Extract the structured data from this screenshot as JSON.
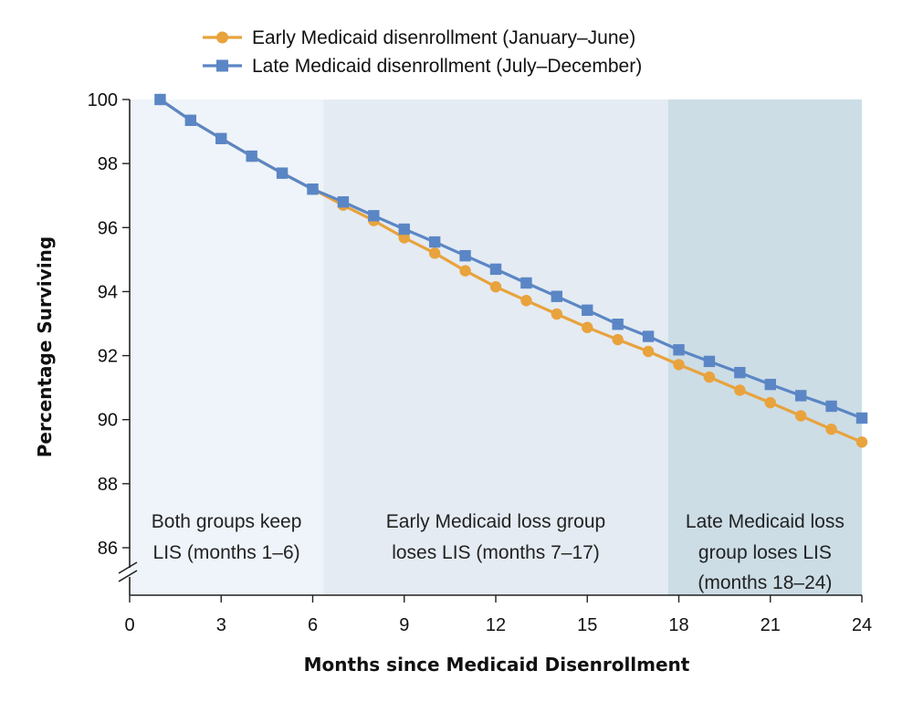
{
  "chart_data": {
    "type": "line",
    "title": "",
    "xlabel": "Months since Medicaid Disenrollment",
    "ylabel": "Percentage Surviving",
    "xlim": [
      0,
      24
    ],
    "ylim": [
      85,
      100
    ],
    "x_ticks": [
      0,
      3,
      6,
      9,
      12,
      15,
      18,
      21,
      24
    ],
    "y_ticks": [
      86,
      88,
      90,
      92,
      94,
      96,
      98,
      100
    ],
    "axis_break": true,
    "legend_position": "top-center",
    "x": [
      1,
      2,
      3,
      4,
      5,
      6,
      7,
      8,
      9,
      10,
      11,
      12,
      13,
      14,
      15,
      16,
      17,
      18,
      19,
      20,
      21,
      22,
      23,
      24
    ],
    "series": [
      {
        "name": "Early Medicaid disenrollment (January–June)",
        "color": "#e8a33d",
        "marker": "circle",
        "values": [
          100.0,
          99.35,
          98.78,
          98.23,
          97.7,
          97.2,
          96.7,
          96.22,
          95.68,
          95.2,
          94.65,
          94.15,
          93.72,
          93.3,
          92.88,
          92.5,
          92.13,
          91.72,
          91.33,
          90.92,
          90.53,
          90.12,
          89.7,
          89.3
        ]
      },
      {
        "name": "Late Medicaid disenrollment (July–December)",
        "color": "#5b86c5",
        "marker": "square",
        "values": [
          100.0,
          99.35,
          98.78,
          98.23,
          97.7,
          97.2,
          96.8,
          96.37,
          95.95,
          95.55,
          95.12,
          94.7,
          94.27,
          93.85,
          93.42,
          92.98,
          92.6,
          92.18,
          91.82,
          91.47,
          91.1,
          90.75,
          90.42,
          90.05
        ]
      }
    ],
    "regions": [
      {
        "x_range": [
          0,
          6.35
        ],
        "color": "#eef4fa",
        "lines": [
          "Both groups keep",
          "LIS (months 1–6)"
        ]
      },
      {
        "x_range": [
          6.35,
          17.65
        ],
        "color": "#e4ebf2",
        "lines": [
          "Early Medicaid loss group",
          "loses LIS (months 7–17)"
        ]
      },
      {
        "x_range": [
          17.65,
          24
        ],
        "color": "#ccdde6",
        "lines": [
          "Late Medicaid loss",
          "group loses LIS",
          "(months 18–24)"
        ]
      }
    ]
  }
}
